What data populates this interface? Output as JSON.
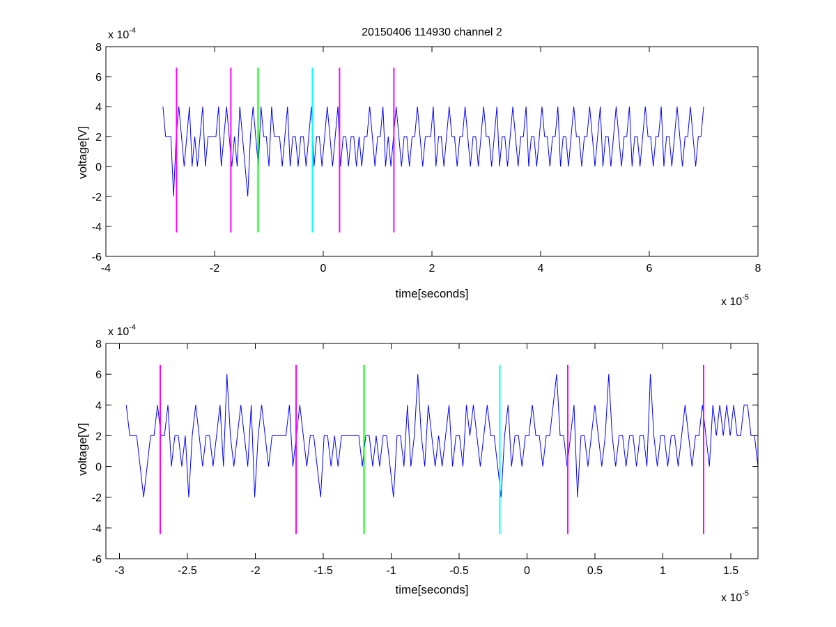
{
  "figure": {
    "title": "20150406 114930 channel 2"
  },
  "chart_data": [
    {
      "type": "line",
      "xlabel": "time[seconds]",
      "ylabel": "voltage[V]",
      "x_exponent_label": "x 10",
      "x_exponent": "-5",
      "y_exponent_label": "x 10",
      "y_exponent": "-4",
      "xlim": [
        -4e-05,
        8e-05
      ],
      "ylim": [
        -0.0006,
        0.0008
      ],
      "xticks": [
        -4e-05,
        -2e-05,
        0,
        2e-05,
        4e-05,
        6e-05,
        8e-05
      ],
      "xtick_labels": [
        "-4",
        "-2",
        "0",
        "2",
        "4",
        "6",
        "8"
      ],
      "yticks": [
        -0.0006,
        -0.0004,
        -0.0002,
        0,
        0.0002,
        0.0004,
        0.0006,
        0.0008
      ],
      "ytick_labels": [
        "-6",
        "-4",
        "-2",
        "0",
        "2",
        "4",
        "6",
        "8"
      ],
      "grid": false,
      "series": [
        {
          "color": "#0000ff",
          "x_start": -2.95e-05,
          "x_end": 7e-05,
          "values": [
            0.0004,
            0.0002,
            0.0002,
            0.0002,
            -0.0002,
            0.0002,
            0.0004,
            0.0002,
            0.0,
            0.0002,
            0.0004,
            0.0,
            0.0002,
            0.0,
            0.0002,
            0.0004,
            0.0,
            0.0002,
            0.0002,
            0.0002,
            0.0002,
            0.0004,
            0.0,
            0.0002,
            0.0004,
            0.0002,
            0.0,
            0.0002,
            0.0,
            0.0004,
            0.0002,
            0.0,
            -0.0002,
            0.0002,
            0.0004,
            0.0002,
            0.0,
            0.0004,
            0.0002,
            0.0002,
            0.0,
            0.0004,
            0.0002,
            0.0002,
            0.0002,
            0.0,
            0.0002,
            0.0004,
            0.0,
            0.0002,
            0.0002,
            0.0,
            0.0002,
            0.0002,
            0.0,
            0.0002,
            0.0004,
            0.0,
            0.0002,
            0.0002,
            0.0,
            0.0002,
            0.0004,
            0.0002,
            0.0,
            0.0002,
            0.0004,
            0.0,
            0.0002,
            0.0002,
            0.0,
            0.0002,
            0.0002,
            0.0,
            0.0002,
            0.0,
            0.0002,
            0.0002,
            0.0004,
            0.0002,
            0.0,
            0.0002,
            0.0002,
            0.0004,
            0.0,
            0.0002,
            0.0,
            0.0002,
            0.0004,
            0.0002,
            0.0,
            0.0002,
            0.0002,
            0.0,
            0.0002,
            0.0002,
            0.0004,
            0.0002,
            0.0,
            0.0002,
            0.0002,
            0.0002,
            0.0004,
            0.0,
            0.0002,
            0.0002,
            0.0,
            0.0002,
            0.0004,
            0.0002,
            0.0002,
            0.0,
            0.0002,
            0.0002,
            0.0004,
            0.0002,
            0.0,
            0.0002,
            0.0002,
            0.0,
            0.0002,
            0.0004,
            0.0002,
            0.0002,
            0.0,
            0.0002,
            0.0004,
            0.0,
            0.0002,
            0.0002,
            0.0,
            0.0002,
            0.0004,
            0.0002,
            0.0,
            0.0002,
            0.0002,
            0.0004,
            0.0,
            0.0002,
            0.0002,
            0.0,
            0.0002,
            0.0004,
            0.0002,
            0.0002,
            0.0,
            0.0002,
            0.0002,
            0.0004,
            0.0,
            0.0002,
            0.0002,
            0.0,
            0.0002,
            0.0004,
            0.0002,
            0.0002,
            0.0,
            0.0002,
            0.0002,
            0.0004,
            0.0002,
            0.0,
            0.0002,
            0.0004,
            0.0,
            0.0002,
            0.0002,
            0.0,
            0.0002,
            0.0004,
            0.0002,
            0.0,
            0.0002,
            0.0002,
            0.0004,
            0.0,
            0.0002,
            0.0002,
            0.0,
            0.0002,
            0.0004,
            0.0002,
            0.0002,
            0.0,
            0.0002,
            0.0002,
            0.0004,
            0.0,
            0.0002,
            0.0002,
            0.0,
            0.0002,
            0.0004,
            0.0002,
            0.0,
            0.0002,
            0.0002,
            0.0004,
            0.0002,
            0.0,
            0.0002,
            0.0002,
            0.0004
          ]
        }
      ],
      "markers": [
        {
          "x": -2.7e-05,
          "color": "#ff00ff",
          "y_range": [
            -0.00044,
            0.00066
          ]
        },
        {
          "x": -1.7e-05,
          "color": "#ff00ff",
          "y_range": [
            -0.00044,
            0.00066
          ]
        },
        {
          "x": -1.2e-05,
          "color": "#00ff00",
          "y_range": [
            -0.00044,
            0.00066
          ]
        },
        {
          "x": -2e-06,
          "color": "#00ffff",
          "y_range": [
            -0.00044,
            0.00066
          ]
        },
        {
          "x": 3e-06,
          "color": "#ff00ff",
          "y_range": [
            -0.00044,
            0.00066
          ]
        },
        {
          "x": 1.3e-05,
          "color": "#ff00ff",
          "y_range": [
            -0.00044,
            0.00066
          ]
        }
      ]
    },
    {
      "type": "line",
      "xlabel": "time[seconds]",
      "ylabel": "voltage[V]",
      "x_exponent_label": "x 10",
      "x_exponent": "-5",
      "y_exponent_label": "x 10",
      "y_exponent": "-4",
      "xlim": [
        -3.1e-05,
        1.7e-05
      ],
      "ylim": [
        -0.0006,
        0.0008
      ],
      "xticks": [
        -3e-05,
        -2.5e-05,
        -2e-05,
        -1.5e-05,
        -1e-05,
        -5e-06,
        0,
        5e-06,
        1e-05,
        1.5e-05
      ],
      "xtick_labels": [
        "-3",
        "-2.5",
        "-2",
        "-1.5",
        "-1",
        "-0.5",
        "0",
        "0.5",
        "1",
        "1.5"
      ],
      "yticks": [
        -0.0006,
        -0.0004,
        -0.0002,
        0,
        0.0002,
        0.0004,
        0.0006,
        0.0008
      ],
      "ytick_labels": [
        "-6",
        "-4",
        "-2",
        "0",
        "2",
        "4",
        "6",
        "8"
      ],
      "grid": false,
      "series": [
        {
          "color": "#0000ff",
          "x_start": -2.95e-05,
          "x_end": 1.7e-05,
          "values": [
            0.0004,
            0.0002,
            0.0002,
            0.0002,
            0.0,
            -0.0002,
            0.0,
            0.0002,
            0.0002,
            0.0004,
            0.0002,
            0.0002,
            0.0004,
            0.0,
            0.0002,
            0.0002,
            0.0,
            0.0002,
            -0.0002,
            0.0002,
            0.0004,
            0.0002,
            0.0,
            0.0002,
            0.0002,
            0.0,
            0.0002,
            0.0004,
            0.0,
            0.0006,
            0.0002,
            0.0,
            0.0002,
            0.0004,
            0.0002,
            0.0,
            0.0004,
            -0.0002,
            0.0002,
            0.0004,
            0.0002,
            0.0,
            0.0002,
            0.0002,
            0.0002,
            0.0002,
            0.0002,
            0.0004,
            0.0,
            0.0002,
            0.0004,
            0.0002,
            0.0,
            0.0002,
            0.0002,
            0.0,
            -0.0002,
            0.0002,
            0.0002,
            0.0,
            0.0002,
            0.0,
            0.0002,
            0.0002,
            0.0002,
            0.0002,
            0.0002,
            0.0002,
            0.0,
            0.0002,
            0.0002,
            0.0,
            0.0002,
            0.0,
            0.0002,
            0.0002,
            0.0,
            -0.0002,
            0.0002,
            0.0002,
            0.0,
            0.0004,
            0.0,
            0.0002,
            0.0006,
            0.0002,
            0.0,
            0.0004,
            0.0002,
            0.0,
            0.0002,
            0.0,
            0.0002,
            0.0004,
            0.0,
            0.0002,
            0.0002,
            0.0,
            0.0004,
            0.0002,
            0.0004,
            0.0002,
            0.0,
            0.0002,
            0.0004,
            0.0002,
            0.0002,
            0.0,
            -0.0002,
            0.0002,
            0.0004,
            0.0,
            0.0002,
            0.0002,
            0.0,
            0.0002,
            0.0002,
            0.0004,
            0.0002,
            0.0002,
            0.0,
            0.0002,
            0.0002,
            0.0004,
            0.0006,
            0.0002,
            0.0002,
            0.0,
            0.0002,
            0.0004,
            -0.0002,
            0.0002,
            0.0002,
            0.0,
            0.0002,
            0.0004,
            0.0002,
            0.0,
            0.0002,
            0.0006,
            0.0002,
            0.0,
            0.0002,
            0.0002,
            0.0,
            0.0002,
            0.0002,
            0.0,
            0.0002,
            0.0002,
            0.0,
            0.0006,
            0.0002,
            0.0,
            0.0002,
            0.0002,
            0.0,
            0.0002,
            0.0002,
            0.0,
            0.0002,
            0.0004,
            0.0002,
            0.0,
            0.0002,
            0.0002,
            0.0004,
            0.0002,
            0.0,
            0.0004,
            0.0002,
            0.0004,
            0.0002,
            0.0004,
            0.0002,
            0.0004,
            0.0002,
            0.0002,
            0.0004,
            0.0004,
            0.0002,
            0.0002,
            0.0
          ]
        }
      ],
      "markers": [
        {
          "x": -2.7e-05,
          "color": "#ff00ff",
          "y_range": [
            -0.00044,
            0.00066
          ]
        },
        {
          "x": -1.7e-05,
          "color": "#ff00ff",
          "y_range": [
            -0.00044,
            0.00066
          ]
        },
        {
          "x": -1.2e-05,
          "color": "#00ff00",
          "y_range": [
            -0.00044,
            0.00066
          ]
        },
        {
          "x": -2e-06,
          "color": "#00ffff",
          "y_range": [
            -0.00044,
            0.00066
          ]
        },
        {
          "x": 3e-06,
          "color": "#ff00ff",
          "y_range": [
            -0.00044,
            0.00066
          ]
        },
        {
          "x": 1.3e-05,
          "color": "#ff00ff",
          "y_range": [
            -0.00044,
            0.00066
          ]
        }
      ]
    }
  ]
}
